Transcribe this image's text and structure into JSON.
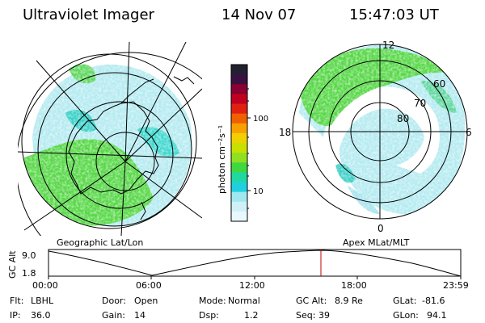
{
  "header": {
    "title": "Ultraviolet Imager",
    "date": "14 Nov 07",
    "time": "15:47:03 UT"
  },
  "colorbar": {
    "label": "photon cm⁻²s⁻¹",
    "ticks": [
      "100",
      "10"
    ],
    "colors": [
      "#202030",
      "#3a1040",
      "#8a0030",
      "#c00020",
      "#e02010",
      "#f06000",
      "#f8a000",
      "#f0d000",
      "#c8e000",
      "#90e020",
      "#40d840",
      "#20d8a0",
      "#20d0e0",
      "#a0e8f0",
      "#d0f0f8",
      "#e8f8ff"
    ]
  },
  "left_map": {
    "caption": "Geographic Lat/Lon"
  },
  "right_map": {
    "caption": "Apex MLat/MLT",
    "clock_labels": {
      "top": "12",
      "left": "18",
      "right": "6",
      "bottom": "0"
    },
    "lat_labels": [
      "60",
      "70",
      "80"
    ]
  },
  "altitude_plot": {
    "ylabel": "GC Alt",
    "y_ticks": [
      "9.0",
      "1.8"
    ],
    "x_ticks": [
      "00:00",
      "06:00",
      "12:00",
      "18:00",
      "23:59"
    ],
    "current_marker_color": "#c00000"
  },
  "info": {
    "row1": [
      {
        "label": "Flt:",
        "value": "LBHL"
      },
      {
        "label": "Door:",
        "value": "Open"
      },
      {
        "label": "Mode:",
        "value": "Normal"
      },
      {
        "label": "GC Alt:",
        "value": "8.9 Re"
      },
      {
        "label": "GLat:",
        "value": "-81.6"
      }
    ],
    "row2": [
      {
        "label": "IP:",
        "value": "36.0"
      },
      {
        "label": "Gain:",
        "value": "14"
      },
      {
        "label": "Dsp:",
        "value": "1.2"
      },
      {
        "label": "Seq:",
        "value": "39"
      },
      {
        "label": "GLon:",
        "value": "94.1"
      }
    ]
  }
}
